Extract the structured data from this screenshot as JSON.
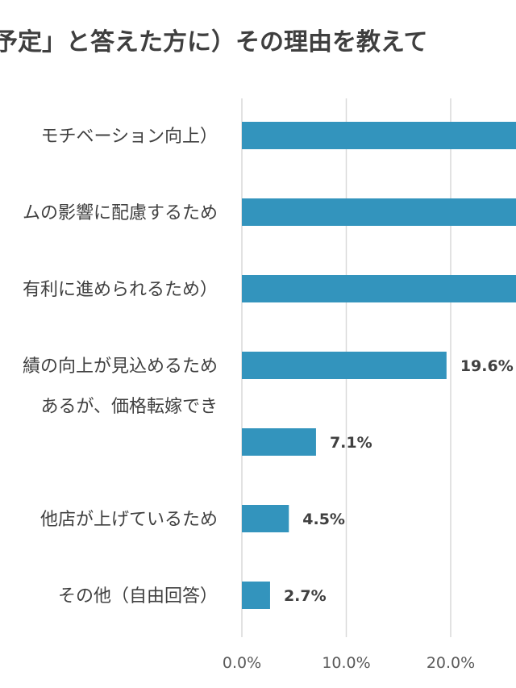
{
  "chart_data": {
    "type": "bar",
    "orientation": "horizontal",
    "title": "予定」と答えた方に）その理由を教えて",
    "categories": [
      [
        "モチベーション向上）"
      ],
      [
        "ムの影響に配慮するため"
      ],
      [
        "有利に進められるため）"
      ],
      [
        "績の向上が見込めるため"
      ],
      [
        "あるが、価格転嫁でき",
        ""
      ],
      [
        "他店が上げているため"
      ],
      [
        "その他（自由回答）"
      ]
    ],
    "values": [
      null,
      null,
      null,
      19.6,
      7.1,
      4.5,
      2.7
    ],
    "value_labels": [
      "",
      "",
      "",
      "19.6%",
      "7.1%",
      "4.5%",
      "2.7%"
    ],
    "xlim": [
      0,
      20
    ],
    "xticks": [
      "0.0%",
      "10.0%",
      "20.0%"
    ],
    "grid": true,
    "bar_color": "#3394bd"
  }
}
